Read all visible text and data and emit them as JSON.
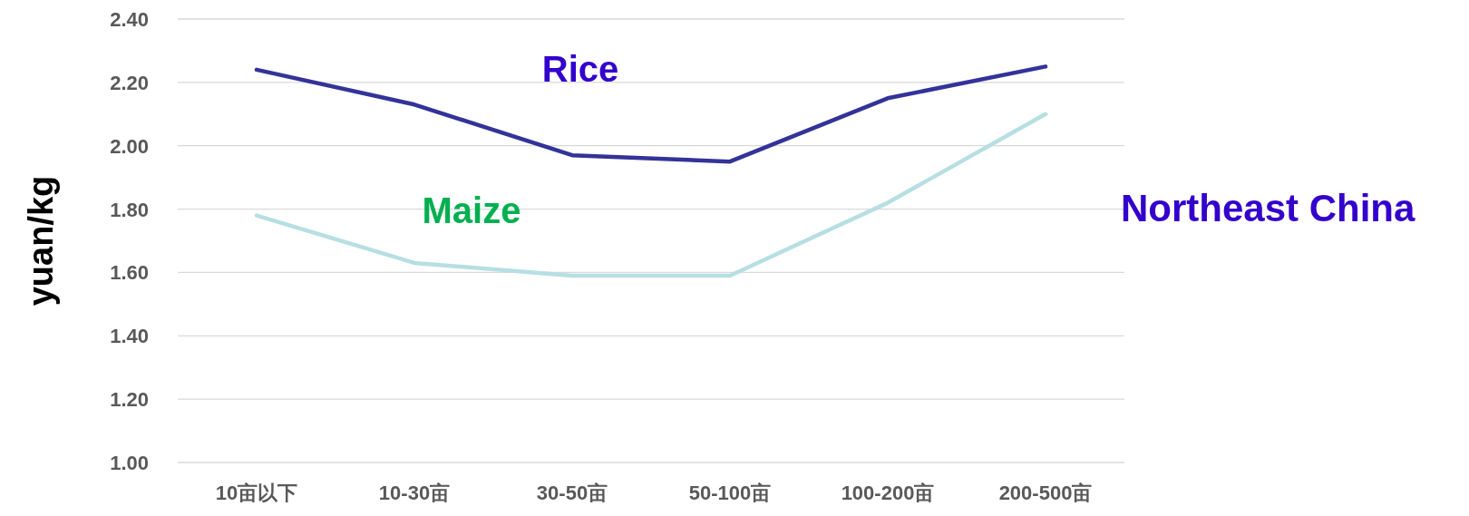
{
  "chart_data": {
    "type": "line",
    "ylabel": "yuan/kg",
    "categories": [
      "10亩以下",
      "10-30亩",
      "30-50亩",
      "50-100亩",
      "100-200亩",
      "200-500亩"
    ],
    "series": [
      {
        "name": "Rice",
        "color": "#333399",
        "values": [
          2.24,
          2.13,
          1.97,
          1.95,
          2.15,
          2.25
        ]
      },
      {
        "name": "Maize",
        "color": "#b7dfe3",
        "values": [
          1.78,
          1.63,
          1.59,
          1.59,
          1.82,
          2.1
        ]
      }
    ],
    "ylim": [
      1.0,
      2.4
    ],
    "yticks": [
      {
        "value": 1.0,
        "label": "1.00"
      },
      {
        "value": 1.2,
        "label": "1.20"
      },
      {
        "value": 1.4,
        "label": "1.40"
      },
      {
        "value": 1.6,
        "label": "1.60"
      },
      {
        "value": 1.8,
        "label": "1.80"
      },
      {
        "value": 2.0,
        "label": "2.00"
      },
      {
        "value": 2.2,
        "label": "2.20"
      },
      {
        "value": 2.4,
        "label": "2.40"
      }
    ],
    "grid": "y",
    "legend": false,
    "marker": "none",
    "line_style": "solid",
    "annotations": [
      "Northeast China"
    ]
  }
}
